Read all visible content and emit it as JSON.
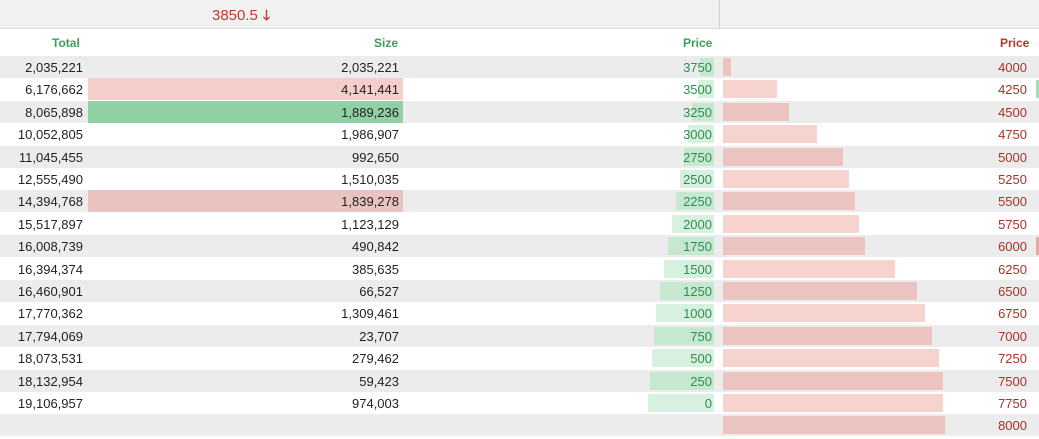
{
  "header": {
    "last_price": "3850.5",
    "last_price_arrow": "🡓"
  },
  "columns": {
    "total": "Total",
    "size": "Size",
    "bid_price": "Price",
    "ask_price": "Price"
  },
  "bids": [
    {
      "total": "2,035,221",
      "size": "2,035,221",
      "price": "3750"
    },
    {
      "total": "6,176,662",
      "size": "4,141,441",
      "price": "3500"
    },
    {
      "total": "8,065,898",
      "size": "1,889,236",
      "price": "3250"
    },
    {
      "total": "10,052,805",
      "size": "1,986,907",
      "price": "3000"
    },
    {
      "total": "11,045,455",
      "size": "992,650",
      "price": "2750"
    },
    {
      "total": "12,555,490",
      "size": "1,510,035",
      "price": "2500"
    },
    {
      "total": "14,394,768",
      "size": "1,839,278",
      "price": "2250"
    },
    {
      "total": "15,517,897",
      "size": "1,123,129",
      "price": "2000"
    },
    {
      "total": "16,008,739",
      "size": "490,842",
      "price": "1750"
    },
    {
      "total": "16,394,374",
      "size": "385,635",
      "price": "1500"
    },
    {
      "total": "16,460,901",
      "size": "66,527",
      "price": "1250"
    },
    {
      "total": "17,770,362",
      "size": "1,309,461",
      "price": "1000"
    },
    {
      "total": "17,794,069",
      "size": "23,707",
      "price": "750"
    },
    {
      "total": "18,073,531",
      "size": "279,462",
      "price": "500"
    },
    {
      "total": "18,132,954",
      "size": "59,423",
      "price": "250"
    },
    {
      "total": "19,106,957",
      "size": "974,003",
      "price": "0"
    }
  ],
  "asks": [
    "4000",
    "4250",
    "4500",
    "4750",
    "5000",
    "5250",
    "5500",
    "5750",
    "6000",
    "6250",
    "6500",
    "6750",
    "7000",
    "7250",
    "7500",
    "7750",
    "8000"
  ],
  "colors": {
    "sell_accent": "#c0392b",
    "buy_price": "#2f8f4e",
    "ask_price": "#a93226",
    "highlight_red": "#f6cfcc",
    "highlight_green": "#8fd0a4",
    "highlight_red_dark": "#e8c3c0"
  }
}
